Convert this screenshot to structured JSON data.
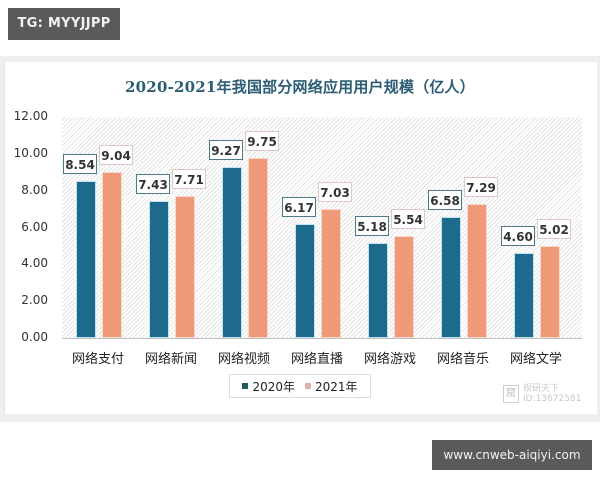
{
  "overlay": {
    "top_tag": "TG: MYYJJPP",
    "bottom_site": "www.cnweb-aiqiyi.com",
    "watermark_logo": "窟",
    "watermark_line1": "观研天下",
    "watermark_line2": "ID:13672581"
  },
  "colors": {
    "series_2020": "#1e6a8c",
    "series_2021": "#ee9a78",
    "title": "#2b5d74"
  },
  "chart_data": {
    "type": "bar",
    "title": "2020-2021年我国部分网络应用用户规模（亿人）",
    "xlabel": "",
    "ylabel": "",
    "ylim": [
      0,
      12
    ],
    "yticks": [
      "0.00",
      "2.00",
      "4.00",
      "6.00",
      "8.00",
      "10.00",
      "12.00"
    ],
    "grid": false,
    "legend_position": "bottom",
    "categories": [
      "网络支付",
      "网络新闻",
      "网络视频",
      "网络直播",
      "网络游戏",
      "网络音乐",
      "网络文学"
    ],
    "series": [
      {
        "name": "2020年",
        "values": [
          8.54,
          7.43,
          9.27,
          6.17,
          5.18,
          6.58,
          4.6
        ],
        "labels": [
          "8.54",
          "7.43",
          "9.27",
          "6.17",
          "5.18",
          "6.58",
          "4.60"
        ]
      },
      {
        "name": "2021年",
        "values": [
          9.04,
          7.71,
          9.75,
          7.03,
          5.54,
          7.29,
          5.02
        ],
        "labels": [
          "9.04",
          "7.71",
          "9.75",
          "7.03",
          "5.54",
          "7.29",
          "5.02"
        ]
      }
    ]
  }
}
